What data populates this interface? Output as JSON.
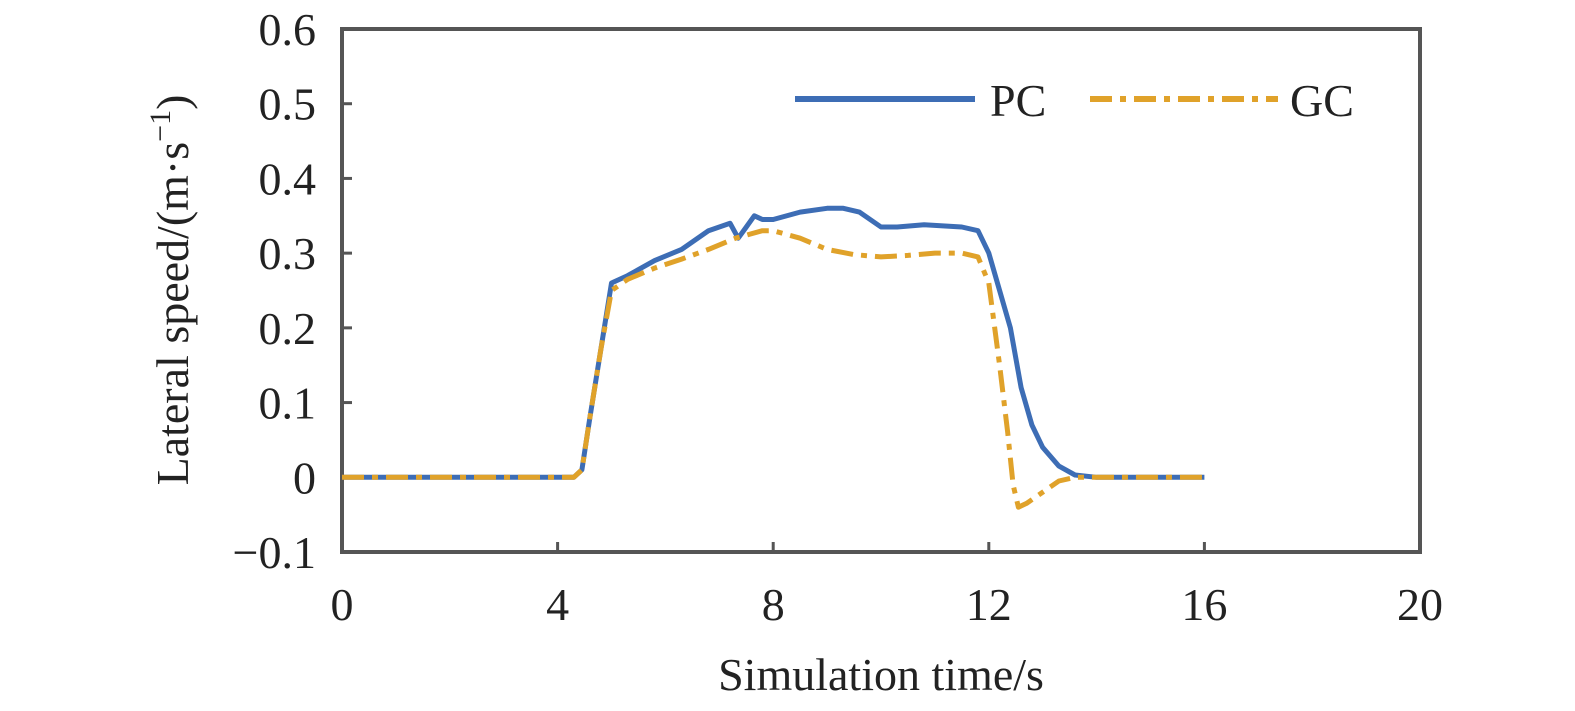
{
  "chart_data": {
    "type": "line",
    "xlabel": "Simulation time/s",
    "ylabel": "Lateral speed/(m·s",
    "ylabel_sup": "−1",
    "ylabel_close": ")",
    "xlim": [
      0,
      20
    ],
    "ylim": [
      -0.1,
      0.6
    ],
    "xticks": [
      0,
      4,
      8,
      12,
      16,
      20
    ],
    "xtick_labels": [
      "0",
      "4",
      "8",
      "12",
      "16",
      "20"
    ],
    "yticks": [
      -0.1,
      0,
      0.1,
      0.2,
      0.3,
      0.4,
      0.5,
      0.6
    ],
    "ytick_labels": [
      "−0.1",
      "0",
      "0.1",
      "0.2",
      "0.3",
      "0.4",
      "0.5",
      "0.6"
    ],
    "grid": false,
    "legend_position": "top-right",
    "series": [
      {
        "name": "PC",
        "color": "#3d6db5",
        "dash": "solid",
        "x": [
          0,
          4.3,
          4.45,
          4.6,
          4.8,
          5.0,
          5.3,
          5.8,
          6.3,
          6.8,
          7.2,
          7.35,
          7.5,
          7.65,
          7.8,
          8.0,
          8.5,
          9.0,
          9.3,
          9.6,
          10.0,
          10.3,
          10.8,
          11.5,
          11.8,
          12.0,
          12.2,
          12.4,
          12.6,
          12.8,
          13.0,
          13.3,
          13.6,
          14.0,
          15.0,
          16.0
        ],
        "y": [
          0,
          0,
          0.01,
          0.08,
          0.17,
          0.26,
          0.27,
          0.29,
          0.305,
          0.33,
          0.34,
          0.32,
          0.335,
          0.35,
          0.345,
          0.345,
          0.355,
          0.36,
          0.36,
          0.355,
          0.335,
          0.335,
          0.338,
          0.335,
          0.33,
          0.3,
          0.25,
          0.2,
          0.12,
          0.07,
          0.04,
          0.015,
          0.003,
          0,
          0,
          0
        ]
      },
      {
        "name": "GC",
        "color": "#e0a22a",
        "dash": "dashdot",
        "x": [
          0,
          4.3,
          4.45,
          4.6,
          4.8,
          5.0,
          5.3,
          5.8,
          6.3,
          6.8,
          7.3,
          7.8,
          8.0,
          8.5,
          9.0,
          9.5,
          10.0,
          10.5,
          11.0,
          11.5,
          11.8,
          12.0,
          12.2,
          12.35,
          12.45,
          12.55,
          12.7,
          13.0,
          13.3,
          13.6,
          14.0,
          15.0,
          16.0
        ],
        "y": [
          0,
          0,
          0.01,
          0.08,
          0.17,
          0.25,
          0.265,
          0.28,
          0.292,
          0.305,
          0.32,
          0.33,
          0.33,
          0.32,
          0.305,
          0.298,
          0.295,
          0.297,
          0.3,
          0.3,
          0.295,
          0.26,
          0.15,
          0.06,
          -0.01,
          -0.04,
          -0.035,
          -0.02,
          -0.005,
          0,
          0,
          0,
          0
        ]
      }
    ]
  }
}
